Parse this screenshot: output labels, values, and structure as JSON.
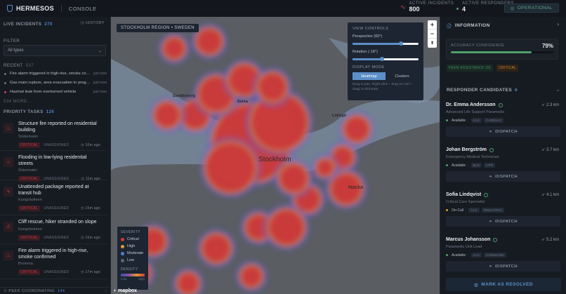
{
  "header": {
    "brand": "HERMESOS",
    "section": "CONSOLE",
    "active_incidents_label": "ACTIVE INCIDENTS",
    "active_incidents": "800",
    "active_responders_label": "ACTIVE RESPONDERS",
    "active_responders": "4",
    "status": "OPERATIONAL"
  },
  "left": {
    "title": "LIVE INCIDENTS",
    "count": "270",
    "history": "HISTORY",
    "filter_label": "FILTER",
    "filter_value": "All types",
    "recent_label": "RECENT",
    "recent_count": "537",
    "recent": [
      {
        "text": "Fire alarm triggered in high-rise, smoke con...",
        "time": "just now",
        "color": "#6b727c"
      },
      {
        "text": "Gas main rupture, area evacuation in progre...",
        "time": "just now",
        "color": "#6b727c"
      },
      {
        "text": "Hazmat leak from overturned vehicle",
        "time": "just now",
        "color": "#c2434f"
      }
    ],
    "more": "534 MORE...",
    "priority_label": "PRIORITY TASKS",
    "priority_count": "126",
    "tasks": [
      {
        "title": "Structure fire reported on residential building",
        "location": "Södermalm",
        "severity": "CRITICAL",
        "assignment": "UNASSIGNED",
        "time": "10m ago",
        "icon": "fire-icon"
      },
      {
        "title": "Flooding in low-lying residential streets",
        "location": "Östermalm",
        "severity": "CRITICAL",
        "assignment": "UNASSIGNED",
        "time": "11m ago",
        "icon": "house-icon"
      },
      {
        "title": "Unattended package reported at transit hub",
        "location": "Kungsholmen",
        "severity": "CRITICAL",
        "assignment": "UNASSIGNED",
        "time": "15m ago",
        "icon": "bolt-icon"
      },
      {
        "title": "Cliff rescue, hiker stranded on slope",
        "location": "Kungsholmen",
        "severity": "CRITICAL",
        "assignment": "UNASSIGNED",
        "time": "16m ago",
        "icon": "warning-icon"
      },
      {
        "title": "Fire alarm triggered in high-rise, smoke confirmed",
        "location": "Bromma",
        "severity": "CRITICAL",
        "assignment": "UNASSIGNED",
        "time": "17m ago",
        "icon": "fire-icon"
      }
    ],
    "peer_label": "PEER COORDINATING",
    "peer_count": "144"
  },
  "map": {
    "region": "STOCKHOLM REGION • SWEDEN",
    "city": "Stockholm",
    "places": [
      "Sundbyberg",
      "Solna",
      "Lidingö",
      "Nacka"
    ],
    "view_controls": {
      "title": "VIEW CONTROLS",
      "perspective": "Perspective (60°)",
      "perspective_value": 60,
      "rotation": "Rotation (-18°)",
      "rotation_value": -18,
      "display_mode": "DISPLAY MODE",
      "modes": [
        "Heatmap",
        "Clusters"
      ],
      "active_mode": "Heatmap",
      "hint": "Drag to pan. Right-click + drag (or Ctrl + drag) to tilt/rotate."
    },
    "legend": {
      "severity": "SEVERITY",
      "items": [
        {
          "label": "Critical",
          "color": "#d23a3a"
        },
        {
          "label": "High",
          "color": "#e09a30"
        },
        {
          "label": "Moderate",
          "color": "#4f7fd0"
        },
        {
          "label": "Low",
          "color": "#5d6570"
        }
      ],
      "density": "DENSITY",
      "low": "Low",
      "high": "High"
    },
    "attribution": "mapbox"
  },
  "right": {
    "info_title": "INFORMATION",
    "accuracy_label": "ACCURACY CONFIDENCE",
    "accuracy": "79%",
    "accuracy_value": 79,
    "badges": [
      "PEER ASSISTANCE OK",
      "CRITICAL"
    ],
    "candidates_label": "RESPONDER CANDIDATES",
    "candidates_count": "6",
    "candidates": [
      {
        "name": "Dr. Emma Andersson",
        "distance": "2.3 km",
        "role": "Advanced Life Support Paramedic",
        "status": "Available",
        "status_color": "#4fa06a",
        "tags": [
          "ALS",
          "CARDIAC"
        ]
      },
      {
        "name": "Johan Bergström",
        "distance": "3.7 km",
        "role": "Emergency Medical Technician",
        "status": "Available",
        "status_color": "#4fa06a",
        "tags": [
          "BLS",
          "CPR"
        ]
      },
      {
        "name": "Sofia Lindqvist",
        "distance": "4.1 km",
        "role": "Critical Care Specialist",
        "status": "On-Call",
        "status_color": "#e09a30",
        "tags": [
          "ALS",
          "PEDIATRIC"
        ]
      },
      {
        "name": "Marcus Johansson",
        "distance": "5.2 km",
        "role": "Paramedic Unit Lead",
        "status": "Available",
        "status_color": "#4fa06a",
        "tags": [
          "ALS",
          "COMMAND"
        ]
      }
    ],
    "dispatch": "DISPATCH",
    "resolve": "MARK AS RESOLVED"
  }
}
